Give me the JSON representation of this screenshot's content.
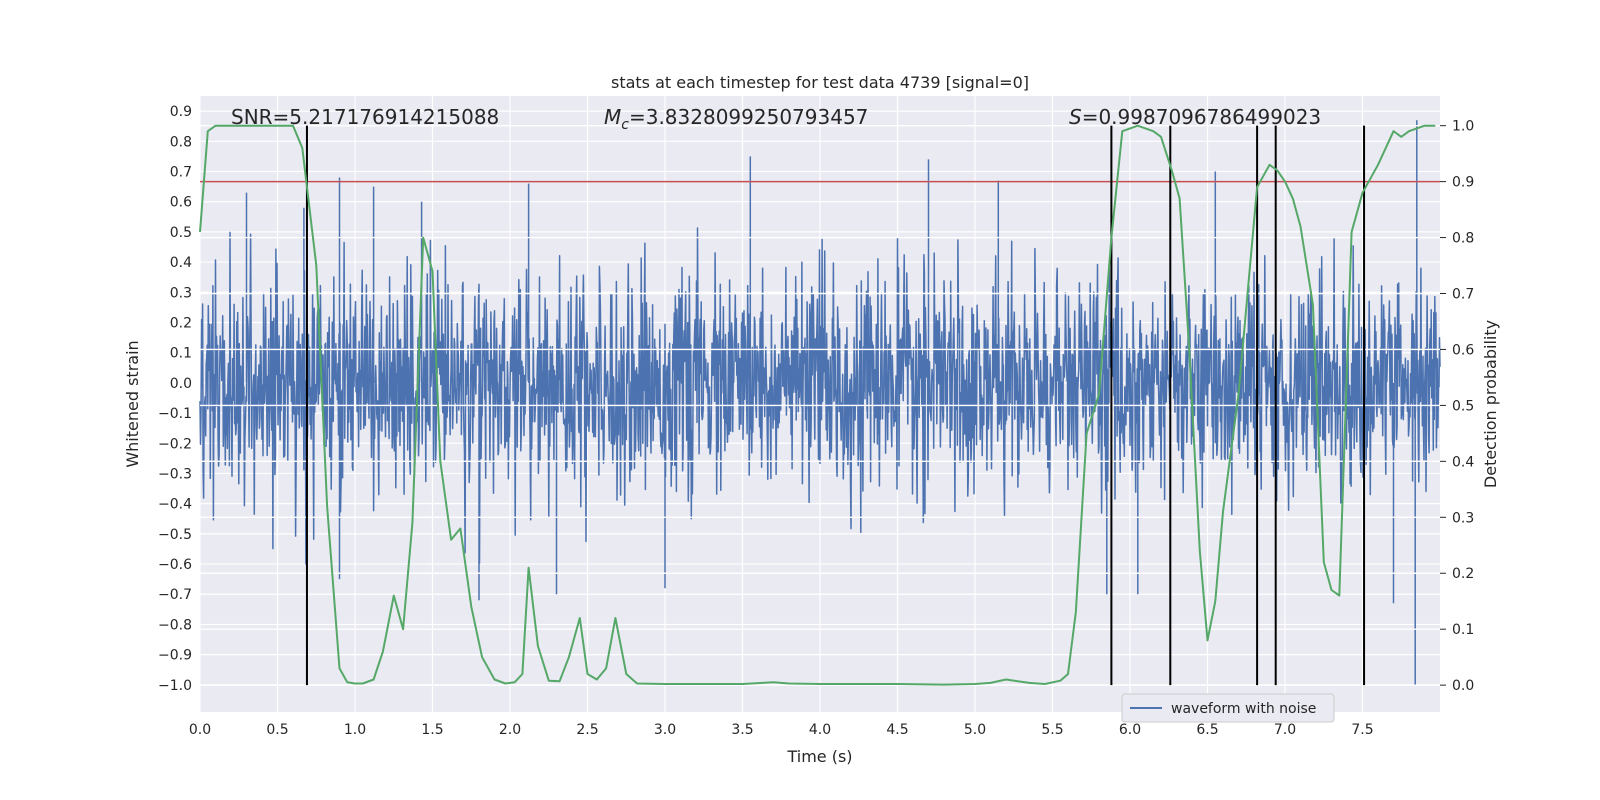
{
  "chart_data": {
    "type": "line",
    "title": "stats at each timestep for test data 4739 [signal=0]",
    "xlabel": "Time (s)",
    "ylabel": "Whitened strain",
    "y2label": "Detection probability",
    "xlim": [
      0.0,
      8.0
    ],
    "ylim": [
      -1.09,
      0.95
    ],
    "y2lim": [
      -0.048,
      1.053
    ],
    "xticks": [
      "0.0",
      "0.5",
      "1.0",
      "1.5",
      "2.0",
      "2.5",
      "3.0",
      "3.5",
      "4.0",
      "4.5",
      "5.0",
      "5.5",
      "6.0",
      "6.5",
      "7.0",
      "7.5"
    ],
    "yticks": [
      "0.9",
      "0.8",
      "0.7",
      "0.6",
      "0.5",
      "0.4",
      "0.3",
      "0.2",
      "0.1",
      "0.0",
      "-0.1",
      "-0.2",
      "-0.3",
      "-0.4",
      "-0.5",
      "-0.6",
      "-0.7",
      "-0.8",
      "-0.9",
      "-1.0"
    ],
    "y2ticks": [
      "1.0",
      "0.9",
      "0.8",
      "0.7",
      "0.6",
      "0.5",
      "0.4",
      "0.3",
      "0.2",
      "0.1",
      "0.0"
    ],
    "annotations": {
      "snr": "SNR=5.217176914215088",
      "mc_symbol": "M",
      "mc_sub": "c",
      "mc_value": "=3.8328099250793457",
      "s_symbol": "S",
      "s_value": "=0.9987096786499023"
    },
    "threshold_line": {
      "y2": 0.9,
      "color": "#c44e52"
    },
    "vertical_lines_x": [
      0.69,
      5.88,
      6.26,
      6.82,
      6.94,
      7.51
    ],
    "series": [
      {
        "name": "waveform with noise",
        "color": "#4c72b0",
        "description": "whitened strain noise, approx amplitude envelope",
        "spikes": [
          {
            "x": 0.3,
            "y": 0.63
          },
          {
            "x": 0.67,
            "y": 0.58
          },
          {
            "x": 0.9,
            "y": 0.68
          },
          {
            "x": 1.12,
            "y": 0.65
          },
          {
            "x": 1.43,
            "y": 0.6
          },
          {
            "x": 2.12,
            "y": 0.66
          },
          {
            "x": 3.55,
            "y": 0.75
          },
          {
            "x": 4.7,
            "y": 0.74
          },
          {
            "x": 5.15,
            "y": 0.67
          },
          {
            "x": 6.55,
            "y": 0.7
          },
          {
            "x": 7.85,
            "y": 0.87
          },
          {
            "x": 0.9,
            "y": -0.65
          },
          {
            "x": 1.8,
            "y": -0.72
          },
          {
            "x": 2.3,
            "y": -0.7
          },
          {
            "x": 3.0,
            "y": -0.68
          },
          {
            "x": 5.85,
            "y": -0.7
          },
          {
            "x": 6.05,
            "y": -0.7
          },
          {
            "x": 7.7,
            "y": -0.73
          },
          {
            "x": 7.84,
            "y": -1.0
          }
        ]
      },
      {
        "name": "detection probability",
        "color": "#55a868",
        "x": [
          0.0,
          0.05,
          0.1,
          0.2,
          0.3,
          0.4,
          0.5,
          0.6,
          0.66,
          0.75,
          0.82,
          0.9,
          0.95,
          1.0,
          1.05,
          1.12,
          1.18,
          1.25,
          1.31,
          1.37,
          1.44,
          1.5,
          1.55,
          1.62,
          1.68,
          1.75,
          1.82,
          1.9,
          1.97,
          2.03,
          2.08,
          2.12,
          2.18,
          2.25,
          2.32,
          2.38,
          2.45,
          2.5,
          2.56,
          2.62,
          2.68,
          2.75,
          2.82,
          3.0,
          3.5,
          3.7,
          3.8,
          4.0,
          4.5,
          4.8,
          5.0,
          5.1,
          5.2,
          5.35,
          5.45,
          5.55,
          5.6,
          5.65,
          5.72,
          5.8,
          5.88,
          5.95,
          6.05,
          6.15,
          6.2,
          6.27,
          6.32,
          6.38,
          6.45,
          6.5,
          6.55,
          6.6,
          6.7,
          6.82,
          6.9,
          6.95,
          7.0,
          7.05,
          7.1,
          7.18,
          7.25,
          7.3,
          7.35,
          7.43,
          7.5,
          7.6,
          7.7,
          7.75,
          7.8,
          7.9,
          7.97
        ],
        "values": [
          0.81,
          0.99,
          1.0,
          1.0,
          1.0,
          1.0,
          1.0,
          1.0,
          0.96,
          0.75,
          0.32,
          0.03,
          0.005,
          0.003,
          0.003,
          0.01,
          0.06,
          0.16,
          0.1,
          0.29,
          0.8,
          0.74,
          0.4,
          0.26,
          0.28,
          0.14,
          0.05,
          0.01,
          0.003,
          0.005,
          0.02,
          0.21,
          0.07,
          0.008,
          0.007,
          0.05,
          0.12,
          0.02,
          0.01,
          0.03,
          0.12,
          0.02,
          0.003,
          0.002,
          0.002,
          0.005,
          0.003,
          0.002,
          0.002,
          0.001,
          0.002,
          0.004,
          0.01,
          0.004,
          0.002,
          0.008,
          0.02,
          0.13,
          0.45,
          0.52,
          0.8,
          0.99,
          1.0,
          0.99,
          0.98,
          0.92,
          0.87,
          0.61,
          0.24,
          0.08,
          0.15,
          0.31,
          0.52,
          0.89,
          0.93,
          0.92,
          0.9,
          0.87,
          0.82,
          0.68,
          0.22,
          0.17,
          0.16,
          0.81,
          0.88,
          0.93,
          0.99,
          0.98,
          0.99,
          1.0,
          1.0
        ]
      }
    ],
    "legend": {
      "label": "waveform with noise",
      "placement": "lower-right"
    }
  }
}
